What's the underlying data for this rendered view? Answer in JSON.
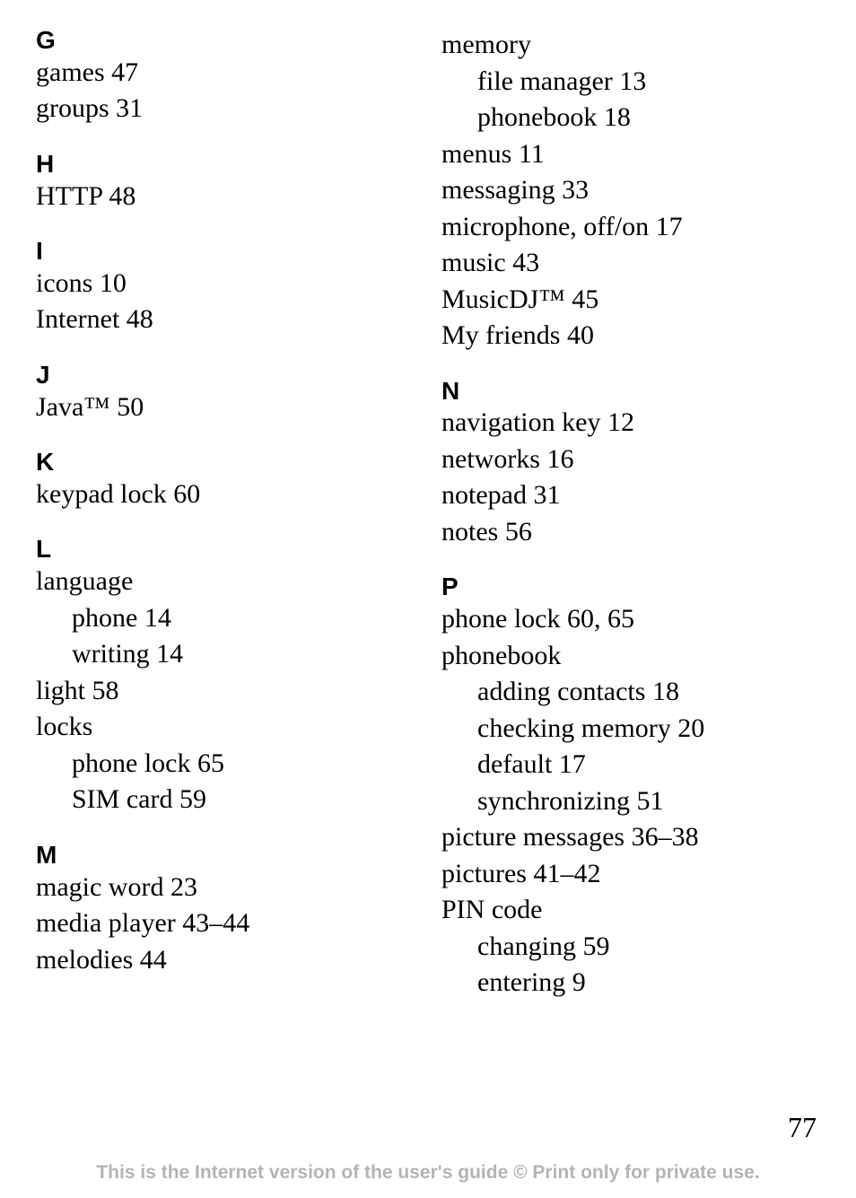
{
  "pageNumber": "77",
  "footer": "This is the Internet version of the user's guide © Print only for private use.",
  "left": {
    "G": {
      "h": "G",
      "items": [
        {
          "t": "games 47"
        },
        {
          "t": "groups 31"
        }
      ]
    },
    "H": {
      "h": "H",
      "items": [
        {
          "t": "HTTP 48"
        }
      ]
    },
    "I": {
      "h": "I",
      "items": [
        {
          "t": "icons 10"
        },
        {
          "t": "Internet 48"
        }
      ]
    },
    "J": {
      "h": "J",
      "items": [
        {
          "t": "Java™ 50"
        }
      ]
    },
    "K": {
      "h": "K",
      "items": [
        {
          "t": "keypad lock 60"
        }
      ]
    },
    "L": {
      "h": "L",
      "items": [
        {
          "t": "language"
        },
        {
          "t": "phone 14",
          "sub": true
        },
        {
          "t": "writing 14",
          "sub": true
        },
        {
          "t": "light 58"
        },
        {
          "t": "locks"
        },
        {
          "t": "phone lock 65",
          "sub": true
        },
        {
          "t": "SIM card 59",
          "sub": true
        }
      ]
    },
    "M": {
      "h": "M",
      "items": [
        {
          "t": "magic word 23"
        },
        {
          "t": "media player 43–44"
        },
        {
          "t": "melodies 44"
        }
      ]
    }
  },
  "right": {
    "Mcont": {
      "items": [
        {
          "t": "memory"
        },
        {
          "t": "file manager 13",
          "sub": true
        },
        {
          "t": "phonebook 18",
          "sub": true
        },
        {
          "t": "menus 11"
        },
        {
          "t": "messaging 33"
        },
        {
          "t": "microphone, off/on 17"
        },
        {
          "t": "music 43"
        },
        {
          "t": "MusicDJ™ 45"
        },
        {
          "t": "My friends 40"
        }
      ]
    },
    "N": {
      "h": "N",
      "items": [
        {
          "t": "navigation key 12"
        },
        {
          "t": "networks 16"
        },
        {
          "t": "notepad 31"
        },
        {
          "t": "notes 56"
        }
      ]
    },
    "P": {
      "h": "P",
      "items": [
        {
          "t": "phone lock 60, 65"
        },
        {
          "t": "phonebook"
        },
        {
          "t": "adding contacts 18",
          "sub": true
        },
        {
          "t": "checking memory 20",
          "sub": true
        },
        {
          "t": "default 17",
          "sub": true
        },
        {
          "t": "synchronizing 51",
          "sub": true
        },
        {
          "t": "picture messages 36–38"
        },
        {
          "t": "pictures 41–42"
        },
        {
          "t": "PIN code"
        },
        {
          "t": "changing 59",
          "sub": true
        },
        {
          "t": "entering 9",
          "sub": true
        }
      ]
    }
  }
}
